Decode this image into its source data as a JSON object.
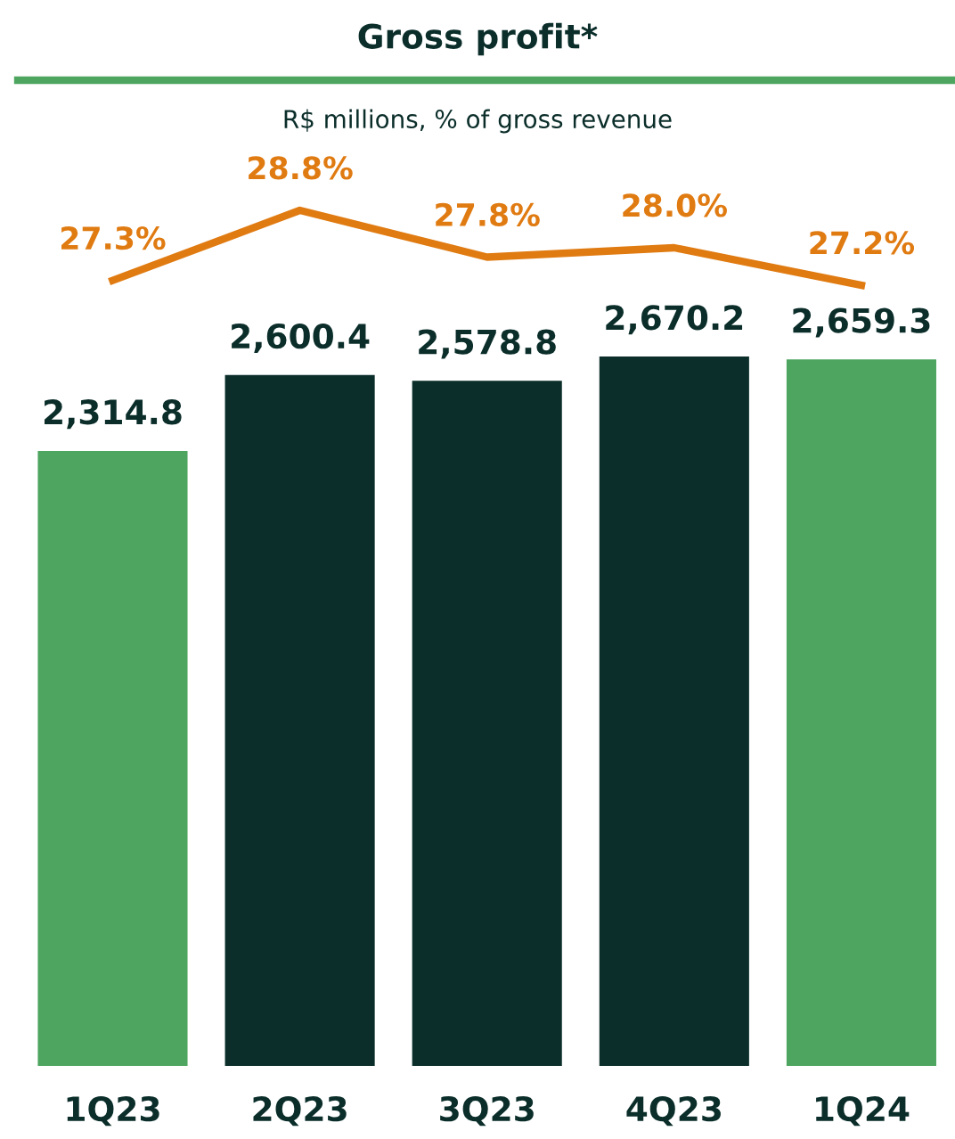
{
  "chart_data": [
    {
      "type": "line",
      "title": "Gross profit*",
      "subtitle": "R$ millions, % of gross revenue",
      "categories": [
        null,
        null,
        null,
        null,
        null
      ],
      "tick_labels": false,
      "series": [
        {
          "color": "#e07b12",
          "values": [
            27.3,
            28.8,
            27.8,
            28.0,
            27.2
          ],
          "value_labels": [
            "27.3%",
            "28.8%",
            "27.8%",
            "28.0%",
            "27.2%"
          ]
        }
      ]
    },
    {
      "type": "bar",
      "categories": [
        "1Q23",
        "2Q23",
        "3Q23",
        "4Q23",
        "1Q24"
      ],
      "tick_labels": "x",
      "series": [
        {
          "type": "bar",
          "colors": [
            "#4ea55f",
            "#0b2e2a",
            "#0b2e2a",
            "#0b2e2a",
            "#4ea55f"
          ],
          "values": [
            2314.8,
            2600.4,
            2578.8,
            2670.2,
            2659.3
          ],
          "value_labels": [
            "2,314.8",
            "2,600.4",
            "2,578.8",
            "2,670.2",
            "2,659.3"
          ]
        }
      ]
    }
  ]
}
